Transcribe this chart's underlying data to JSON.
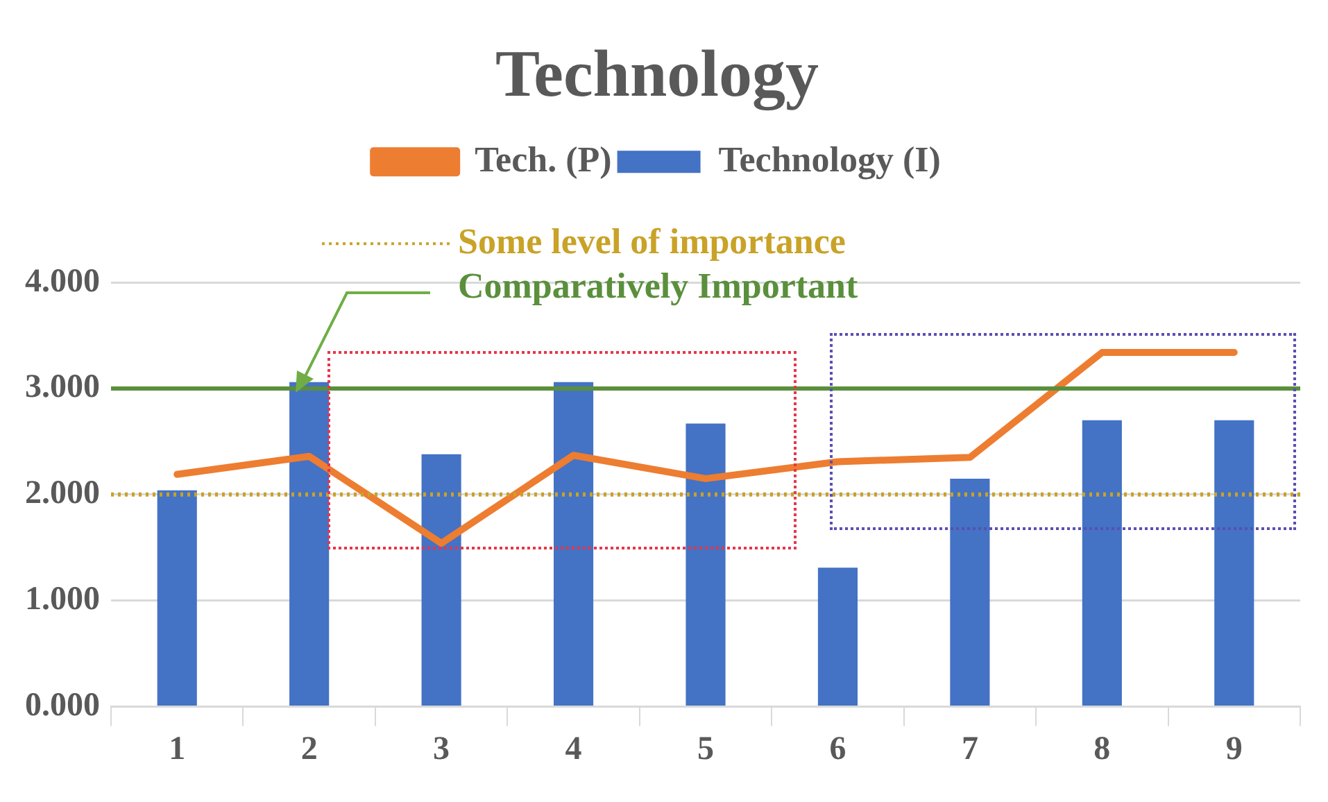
{
  "chart_data": {
    "type": "bar",
    "title": "Technology",
    "categories": [
      "1",
      "2",
      "3",
      "4",
      "5",
      "6",
      "7",
      "8",
      "9"
    ],
    "series": [
      {
        "name": "Technology (I)",
        "color": "#4472c4",
        "values": [
          2.04,
          3.06,
          2.38,
          3.06,
          2.67,
          1.31,
          2.15,
          2.7,
          2.7
        ]
      },
      {
        "name": "Tech. (P)",
        "type": "line",
        "color": "#ed7d31",
        "values": [
          2.19,
          2.36,
          1.54,
          2.37,
          2.15,
          2.31,
          2.35,
          3.34,
          3.34
        ]
      }
    ],
    "ylim": [
      0,
      4
    ],
    "yticks": [
      {
        "value": 0,
        "label": "0.000"
      },
      {
        "value": 1,
        "label": "1.000"
      },
      {
        "value": 2,
        "label": "2.000"
      },
      {
        "value": 3,
        "label": "3.000"
      },
      {
        "value": 4,
        "label": "4.000"
      }
    ],
    "grid": "y",
    "legend": "top",
    "marker": "none",
    "ref_lines": [
      {
        "axis": "y",
        "value": 2,
        "label": "Some level of importance",
        "color": "#c9a227",
        "line_style": "dotted"
      },
      {
        "axis": "y",
        "value": 3,
        "label": "Comparatively Important",
        "color": "#5a8f3c",
        "line_style": "solid"
      }
    ]
  }
}
